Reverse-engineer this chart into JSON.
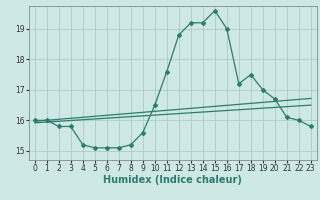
{
  "xlabel": "Humidex (Indice chaleur)",
  "background_color": "#cde8e5",
  "grid_color": "#aaccca",
  "line_color": "#2d7d6e",
  "xlim": [
    -0.5,
    23.5
  ],
  "ylim": [
    14.7,
    19.75
  ],
  "xticks": [
    0,
    1,
    2,
    3,
    4,
    5,
    6,
    7,
    8,
    9,
    10,
    11,
    12,
    13,
    14,
    15,
    16,
    17,
    18,
    19,
    20,
    21,
    22,
    23
  ],
  "yticks": [
    15,
    16,
    17,
    18,
    19
  ],
  "curve1_x": [
    0,
    1,
    2,
    3,
    4,
    5,
    6,
    7,
    8,
    9,
    10,
    11,
    12,
    13,
    14,
    15,
    16,
    17,
    18,
    19,
    20,
    21,
    22,
    23
  ],
  "curve1_y": [
    16.0,
    16.0,
    15.8,
    15.8,
    15.2,
    15.1,
    15.1,
    15.1,
    15.2,
    15.6,
    16.5,
    17.6,
    18.8,
    19.2,
    19.2,
    19.6,
    19.0,
    17.2,
    17.5,
    17.0,
    16.7,
    16.1,
    16.0,
    15.8
  ],
  "line1_x": [
    0,
    23
  ],
  "line1_y": [
    15.92,
    16.5
  ],
  "line2_x": [
    0,
    23
  ],
  "line2_y": [
    15.97,
    16.72
  ],
  "tick_fontsize": 5.5,
  "xlabel_fontsize": 7
}
